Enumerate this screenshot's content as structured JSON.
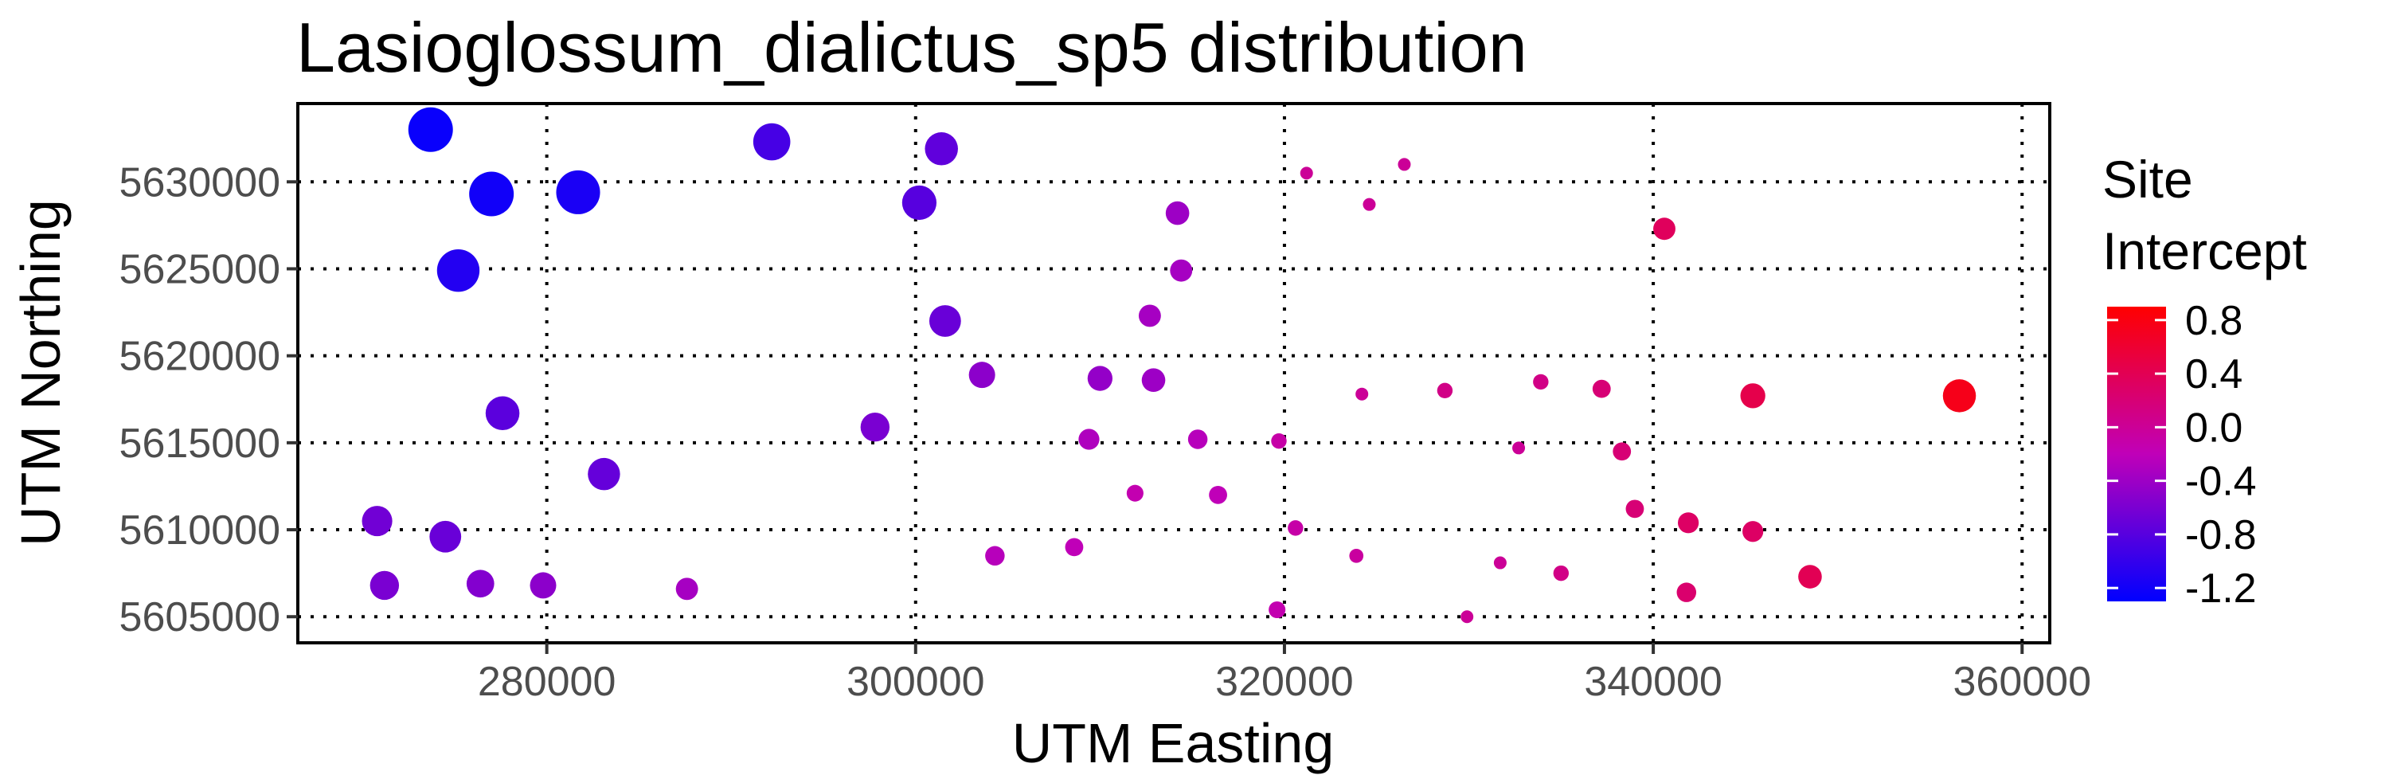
{
  "chart_data": {
    "type": "scatter",
    "title": "Lasioglossum_dialictus_sp5 distribution",
    "xlabel": "UTM Easting",
    "ylabel": "UTM Northing",
    "xlim": [
      266500,
      361500
    ],
    "ylim": [
      5603500,
      5634500
    ],
    "x_ticks": [
      280000,
      300000,
      320000,
      340000,
      360000
    ],
    "y_ticks": [
      5605000,
      5610000,
      5615000,
      5620000,
      5625000,
      5630000
    ],
    "grid": true,
    "legend": {
      "title_lines": [
        "Site",
        "Intercept"
      ],
      "position": "right",
      "min": -1.3,
      "max": 0.9,
      "ticks": [
        0.8,
        0.4,
        0.0,
        -0.4,
        -0.8,
        -1.2
      ],
      "tick_labels": [
        "0.8",
        "0.4",
        "0.0",
        "-0.4",
        "-0.8",
        "-1.2"
      ],
      "color_low": "#0000ff",
      "color_high": "#ff0000"
    },
    "points": [
      {
        "x": 273700,
        "y": 5633000,
        "v": -1.25
      },
      {
        "x": 277000,
        "y": 5629300,
        "v": -1.2
      },
      {
        "x": 281700,
        "y": 5629400,
        "v": -1.15
      },
      {
        "x": 275200,
        "y": 5624900,
        "v": -1.1
      },
      {
        "x": 292200,
        "y": 5632300,
        "v": -0.9
      },
      {
        "x": 301400,
        "y": 5631900,
        "v": -0.75
      },
      {
        "x": 300200,
        "y": 5628800,
        "v": -0.8
      },
      {
        "x": 301600,
        "y": 5622000,
        "v": -0.7
      },
      {
        "x": 277600,
        "y": 5616700,
        "v": -0.78
      },
      {
        "x": 283100,
        "y": 5613200,
        "v": -0.72
      },
      {
        "x": 297800,
        "y": 5615900,
        "v": -0.6
      },
      {
        "x": 303600,
        "y": 5618900,
        "v": -0.5
      },
      {
        "x": 310000,
        "y": 5618700,
        "v": -0.45
      },
      {
        "x": 312900,
        "y": 5618600,
        "v": -0.4
      },
      {
        "x": 312700,
        "y": 5622300,
        "v": -0.35
      },
      {
        "x": 314200,
        "y": 5628200,
        "v": -0.4
      },
      {
        "x": 314400,
        "y": 5624900,
        "v": -0.35
      },
      {
        "x": 309400,
        "y": 5615200,
        "v": -0.3
      },
      {
        "x": 315300,
        "y": 5615200,
        "v": -0.25
      },
      {
        "x": 311900,
        "y": 5612100,
        "v": -0.15
      },
      {
        "x": 316400,
        "y": 5612000,
        "v": -0.2
      },
      {
        "x": 319700,
        "y": 5615100,
        "v": -0.1
      },
      {
        "x": 321200,
        "y": 5630500,
        "v": 0.0
      },
      {
        "x": 324600,
        "y": 5628700,
        "v": 0.0
      },
      {
        "x": 326500,
        "y": 5631000,
        "v": 0.0
      },
      {
        "x": 324200,
        "y": 5617800,
        "v": 0.0
      },
      {
        "x": 328700,
        "y": 5618000,
        "v": 0.1
      },
      {
        "x": 333900,
        "y": 5618500,
        "v": 0.1
      },
      {
        "x": 337200,
        "y": 5618100,
        "v": 0.2
      },
      {
        "x": 345400,
        "y": 5617700,
        "v": 0.45
      },
      {
        "x": 356600,
        "y": 5617700,
        "v": 0.75
      },
      {
        "x": 340600,
        "y": 5627300,
        "v": 0.35
      },
      {
        "x": 332700,
        "y": 5614700,
        "v": 0.0
      },
      {
        "x": 338300,
        "y": 5614500,
        "v": 0.2
      },
      {
        "x": 339000,
        "y": 5611200,
        "v": 0.2
      },
      {
        "x": 341900,
        "y": 5610400,
        "v": 0.3
      },
      {
        "x": 345400,
        "y": 5609900,
        "v": 0.3
      },
      {
        "x": 348500,
        "y": 5607300,
        "v": 0.4
      },
      {
        "x": 341800,
        "y": 5606400,
        "v": 0.25
      },
      {
        "x": 335000,
        "y": 5607500,
        "v": 0.1
      },
      {
        "x": 331700,
        "y": 5608100,
        "v": 0.0
      },
      {
        "x": 329900,
        "y": 5605000,
        "v": 0.0
      },
      {
        "x": 323900,
        "y": 5608500,
        "v": -0.05
      },
      {
        "x": 320600,
        "y": 5610100,
        "v": -0.1
      },
      {
        "x": 319600,
        "y": 5605400,
        "v": -0.15
      },
      {
        "x": 308600,
        "y": 5609000,
        "v": -0.2
      },
      {
        "x": 304300,
        "y": 5608500,
        "v": -0.25
      },
      {
        "x": 287600,
        "y": 5606600,
        "v": -0.35
      },
      {
        "x": 279800,
        "y": 5606800,
        "v": -0.5
      },
      {
        "x": 276400,
        "y": 5606900,
        "v": -0.55
      },
      {
        "x": 271200,
        "y": 5606800,
        "v": -0.6
      },
      {
        "x": 270800,
        "y": 5610500,
        "v": -0.65
      },
      {
        "x": 274500,
        "y": 5609600,
        "v": -0.7
      }
    ]
  }
}
